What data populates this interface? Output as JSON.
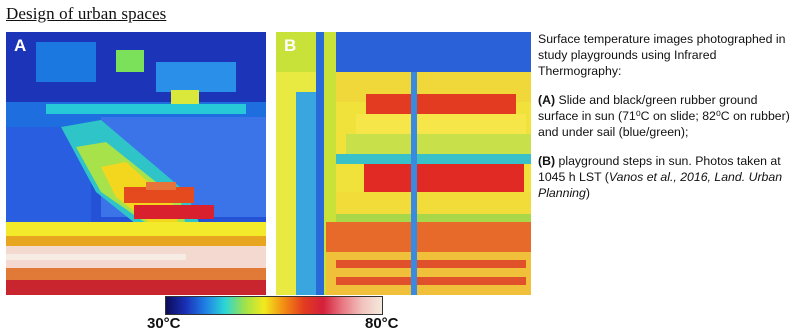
{
  "heading": "Design of urban spaces",
  "panels": [
    {
      "label": "A",
      "description": "thermal image of slide and rubber ground surface"
    },
    {
      "label": "B",
      "description": "thermal image of playground steps"
    }
  ],
  "caption": {
    "intro": "Surface temperature images photographed in study playgrounds using Infrared Thermography:",
    "part_a_label": "(A)",
    "part_a_text": "Slide and black/green rubber ground surface in sun (71⁰C on slide; 82⁰C on rubber) and under sail (blue/green);",
    "part_b_label": "(B)",
    "part_b_text": "playground steps in sun. Photos taken at 1045 h LST (",
    "citation": "Vanos et al., 2016, Land. Urban Planning",
    "part_b_close": ")"
  },
  "scale": {
    "min_label": "30°C",
    "max_label": "80°C",
    "colors": [
      "#0c0b58",
      "#1a2fb7",
      "#1f7fe6",
      "#2bd6d6",
      "#9ee24a",
      "#f2ea1e",
      "#f28d13",
      "#e33d1f",
      "#d41f3a",
      "#e87984",
      "#f1c3bd",
      "#f5e8dc"
    ]
  }
}
